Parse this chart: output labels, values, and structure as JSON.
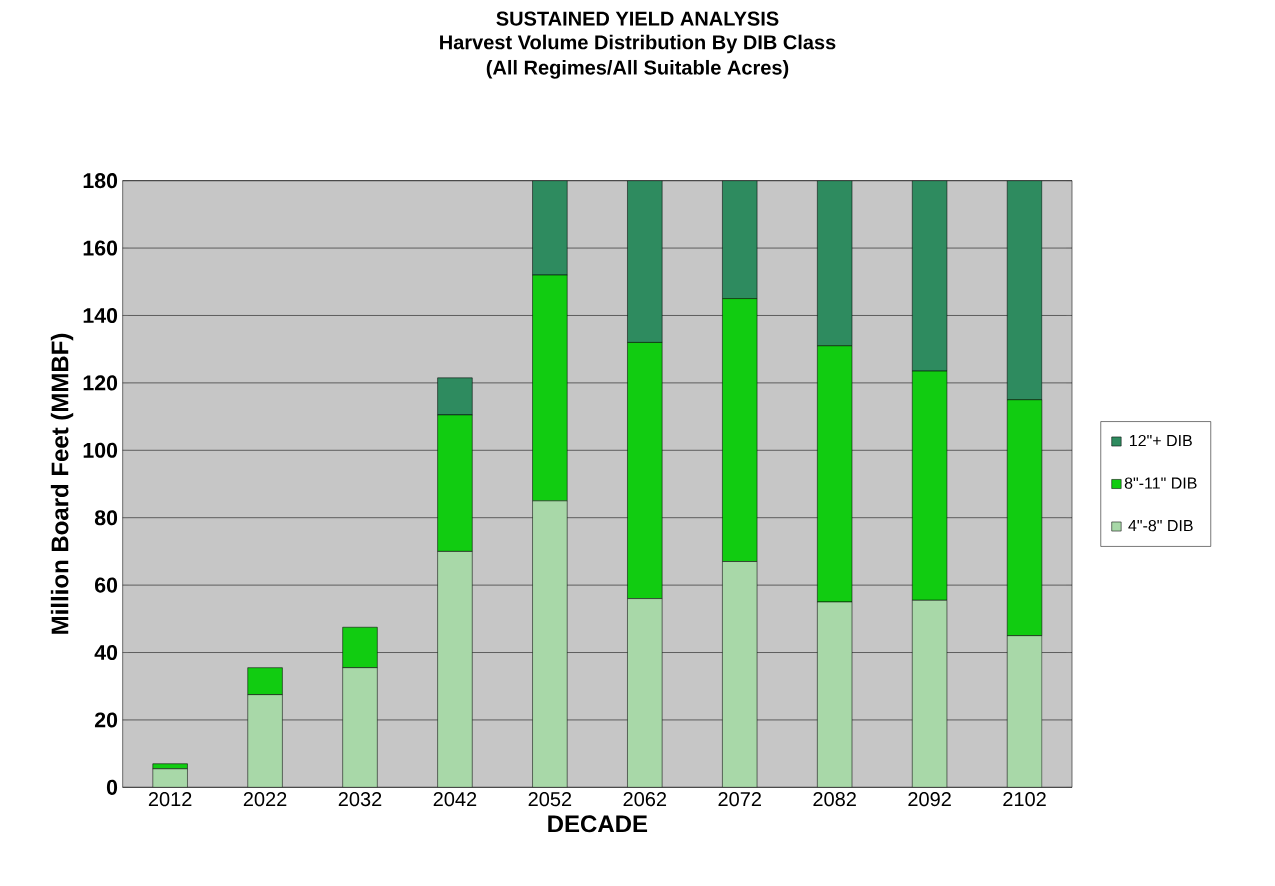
{
  "chart_data": {
    "type": "bar",
    "stacked": true,
    "title": "SUSTAINED YIELD ANALYSIS",
    "subtitle": "Harvest Volume Distribution By DIB Class",
    "annotations": [
      "(All Regimes/All Suitable Acres)"
    ],
    "xlabel": "DECADE",
    "ylabel": "Million Board Feet (MMBF)",
    "categories": [
      "2012",
      "2022",
      "2032",
      "2042",
      "2052",
      "2062",
      "2072",
      "2082",
      "2092",
      "2102"
    ],
    "series": [
      {
        "name": "4\"-8\" DIB",
        "color": "#a8d8a8",
        "values": [
          5.5,
          27.5,
          35.5,
          70,
          85,
          56,
          67,
          55,
          55.5,
          45
        ]
      },
      {
        "name": "8\"-11\" DIB",
        "color": "#11cc11",
        "values": [
          1.5,
          8,
          12,
          40.5,
          67,
          76,
          78,
          76,
          68,
          70
        ]
      },
      {
        "name": "12\"+ DIB",
        "color": "#2e8b5f",
        "values": [
          0,
          0,
          0,
          11,
          28,
          48,
          35,
          49,
          56.5,
          65
        ]
      }
    ],
    "ylim": [
      0,
      180
    ],
    "yticks": [
      0,
      20,
      40,
      60,
      80,
      100,
      120,
      140,
      160,
      180
    ],
    "grid": "y",
    "legend": "right"
  }
}
